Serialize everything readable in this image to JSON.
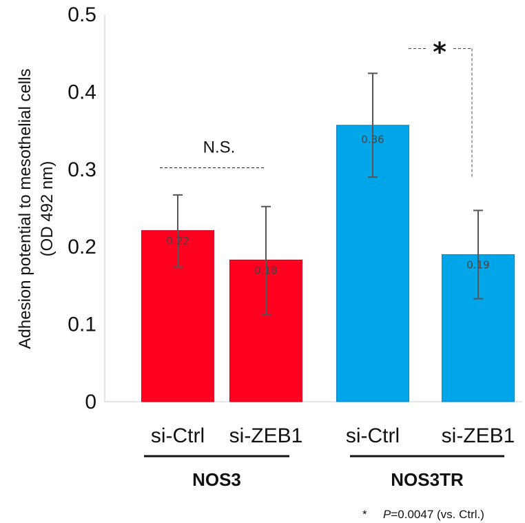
{
  "chart_data": {
    "type": "bar",
    "ylabel": [
      "Adhesion potential to mesothelial cells",
      "(OD 492 nm)"
    ],
    "ylim": [
      0,
      0.5
    ],
    "yticks": [
      {
        "value": 0,
        "label": "0"
      },
      {
        "value": 0.1,
        "label": "0.1"
      },
      {
        "value": 0.2,
        "label": "0.2"
      },
      {
        "value": 0.3,
        "label": "0.3"
      },
      {
        "value": 0.4,
        "label": "0.4"
      },
      {
        "value": 0.5,
        "label": "0.5"
      }
    ],
    "grid": false,
    "bars": [
      {
        "category": "si-Ctrl",
        "group": "NOS3",
        "value": 0.221,
        "label": "0.22",
        "err_low": 0.174,
        "err_high": 0.267,
        "color": "#ff0020"
      },
      {
        "category": "si-ZEB1",
        "group": "NOS3",
        "value": 0.183,
        "label": "0.18",
        "err_low": 0.112,
        "err_high": 0.252,
        "color": "#ff0020"
      },
      {
        "category": "si-Ctrl",
        "group": "NOS3TR",
        "value": 0.357,
        "label": "0.36",
        "err_low": 0.29,
        "err_high": 0.424,
        "color": "#00a6e8"
      },
      {
        "category": "si-ZEB1",
        "group": "NOS3TR",
        "value": 0.19,
        "label": "0.19",
        "err_low": 0.133,
        "err_high": 0.247,
        "color": "#00a6e8"
      }
    ],
    "groups": [
      "NOS3",
      "NOS3TR"
    ],
    "annotations": {
      "ns_text": "N.S.",
      "ns_value": 0.302,
      "sig_marker": "*",
      "sig_value": 0.456,
      "sig_drop_to": 0.288
    },
    "footnote": {
      "marker": "*",
      "p_label": "P",
      "text": "=0.0047 (vs. Ctrl.)"
    }
  }
}
